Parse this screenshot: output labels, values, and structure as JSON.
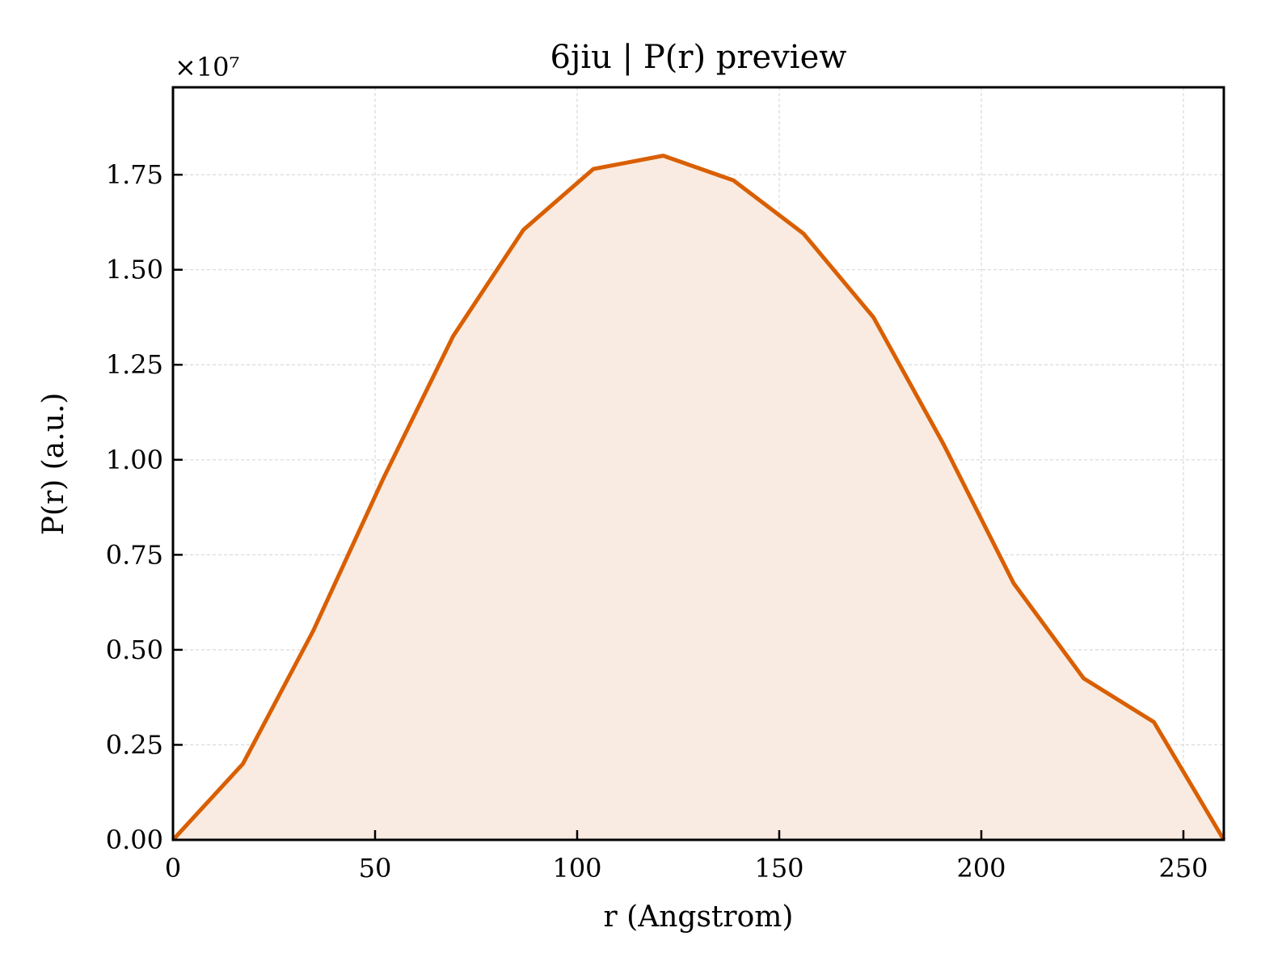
{
  "chart_data": {
    "type": "area",
    "title": "6jiu | P(r) preview",
    "xlabel": "r (Angstrom)",
    "ylabel": "P(r) (a.u.)",
    "y_offset_label": "×10⁷",
    "xlim": [
      0,
      260
    ],
    "ylim": [
      0,
      1.98
    ],
    "xticks": [
      0,
      50,
      100,
      150,
      200,
      250
    ],
    "xtick_labels": [
      "0",
      "50",
      "100",
      "150",
      "200",
      "250"
    ],
    "yticks": [
      0,
      0.25,
      0.5,
      0.75,
      1.0,
      1.25,
      1.5,
      1.75
    ],
    "ytick_labels": [
      "0.00",
      "0.25",
      "0.50",
      "0.75",
      "1.00",
      "1.25",
      "1.50",
      "1.75"
    ],
    "grid": true,
    "line_color": "#d95f02",
    "fill_color": "#f9ebe1",
    "series": [
      {
        "x": [
          0,
          17.3,
          34.7,
          52.0,
          69.3,
          86.7,
          104.0,
          121.3,
          138.7,
          156.0,
          173.3,
          190.7,
          208.0,
          225.3,
          242.7,
          260.0
        ],
        "y": [
          0.0,
          0.2,
          0.55,
          0.95,
          1.325,
          1.605,
          1.765,
          1.8,
          1.735,
          1.595,
          1.375,
          1.04,
          0.675,
          0.425,
          0.31,
          0.0
        ]
      }
    ]
  }
}
